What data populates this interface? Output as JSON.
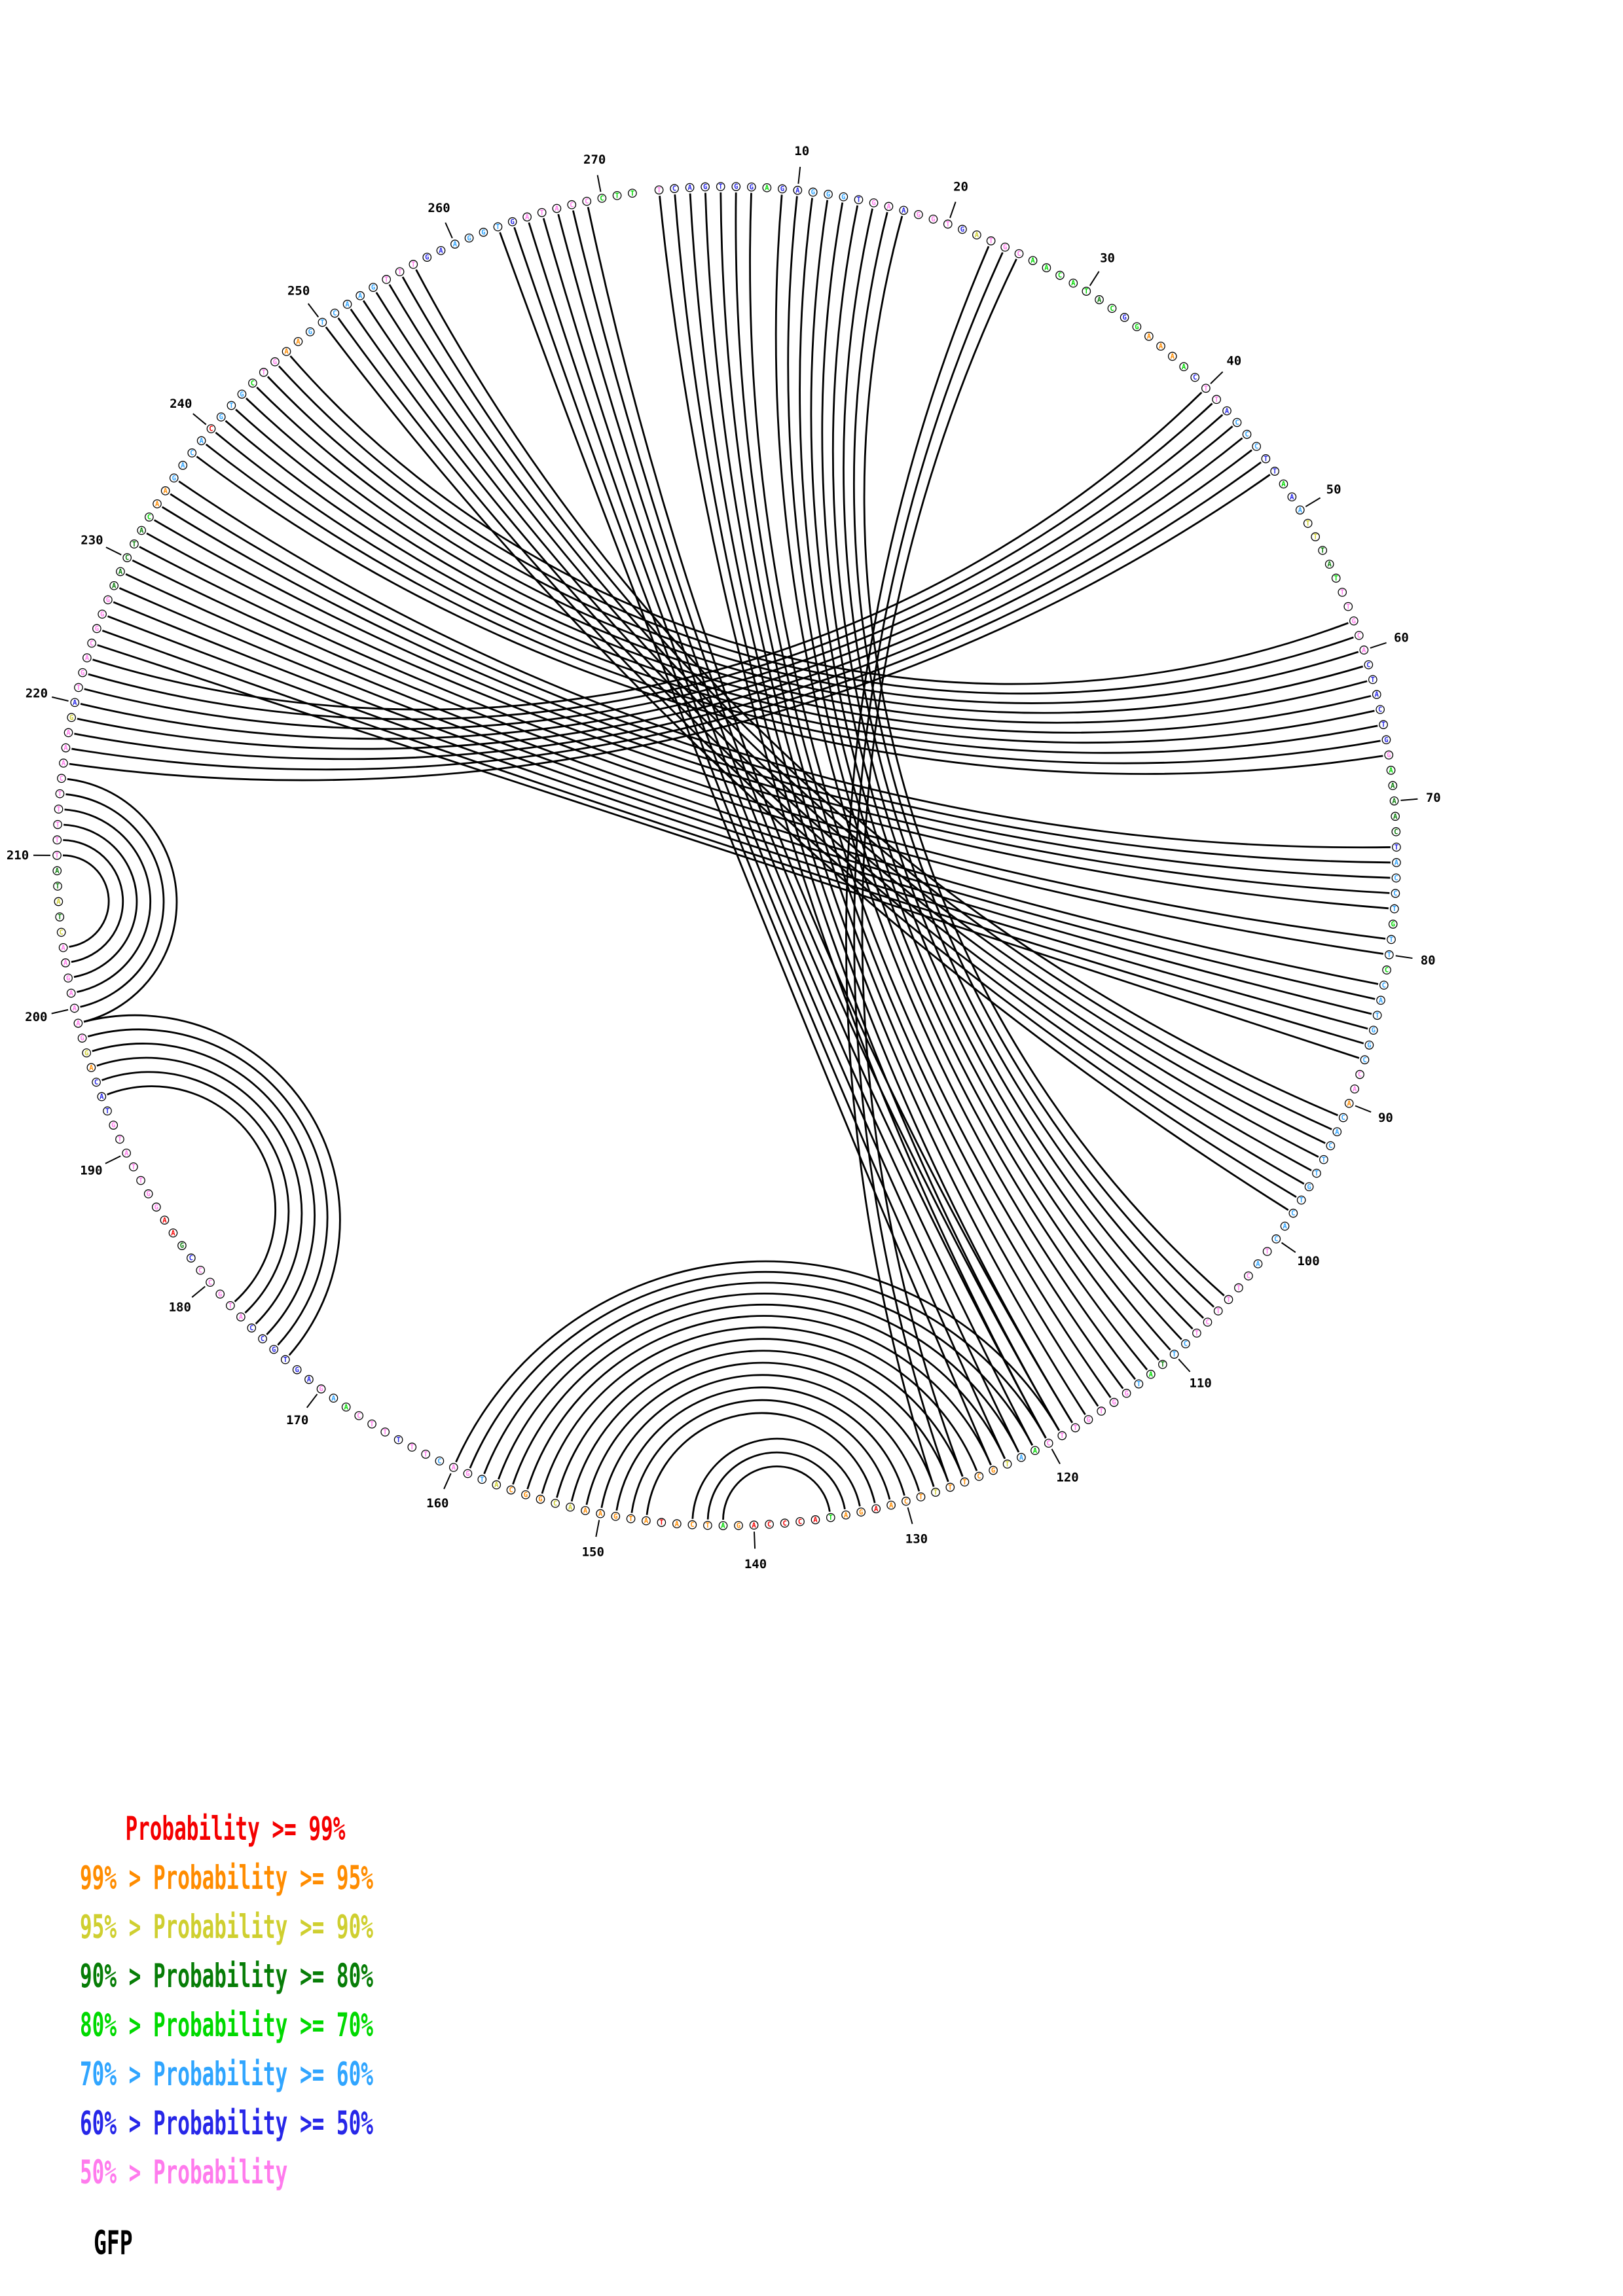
{
  "title": "GFP",
  "legend": {
    "rows": [
      {
        "label": "Probability >= 99%",
        "color": "#f40000",
        "indent": true
      },
      {
        "label": "99% > Probability >= 95%",
        "color": "#ff8c00",
        "indent": false
      },
      {
        "label": "95% > Probability >= 90%",
        "color": "#cfcf30",
        "indent": false
      },
      {
        "label": "90% > Probability >= 80%",
        "color": "#077d07",
        "indent": false
      },
      {
        "label": "80% > Probability >= 70%",
        "color": "#00d900",
        "indent": false
      },
      {
        "label": "70% > Probability >= 60%",
        "color": "#30a5ff",
        "indent": false
      },
      {
        "label": "60% > Probability >= 50%",
        "color": "#2727e8",
        "indent": false
      },
      {
        "label": "50% > Probability",
        "color": "#ff7bed",
        "indent": false
      }
    ]
  },
  "chart_data": {
    "type": "circular-arc-diagram",
    "title": "GFP",
    "sequence": "TCAGTGGAGAGGGTGAAGGTGATGCAACATACGGAAAACTTACCCTTAAATTTATTTGCACTACTGGAAAACTACCTGTTCCATGGCCAACACTTGTCACTACTTTCTCTTATGGTGTTCAATGCTTTTCAAGATACCCAGATCATATGAAACGGCATGACTTTTTCAAGAGTGCCATGCCCGAAGGTTATGTACAGGAAAGAACTATATTTTTCAAAGATGACGGGAACTACAAGACACGTGCTGAAGTCAAGTTTGAAGGTGATACCCTT",
    "node_color_classes": "pbbbbbbgbbcccbppbpppbypppgggggGgbgooogbppbcccbbgbcyyGGgpppppbbbbbbpgGGGGbccccgccgccccccppoccccccccccpcppppppccGgcpppppppgcyooooyoooroogrrrrrogoooroooooyyoooycppcppbpppgcpbbbbbbpppppbGrrpppppppbbboypppppppyGyGGpppppppppybpppppppGGGGGgooccccrcccgppooccccccpppbbccccbpppppggg",
    "color_classes": {
      "r": "#f40000",
      "o": "#ff8c00",
      "y": "#cfcf30",
      "G": "#077d07",
      "g": "#00d900",
      "c": "#30a5ff",
      "b": "#2727e8",
      "p": "#ff7bed"
    },
    "class_meaning": {
      "r": "Probability >= 99%",
      "o": "99% > Probability >= 95%",
      "y": "95% > Probability >= 90%",
      "G": "90% > Probability >= 80%",
      "g": "80% > Probability >= 70%",
      "c": "70% > Probability >= 60%",
      "b": "60% > Probability >= 50%",
      "p": "50% > Probability"
    },
    "position_labels": [
      10,
      20,
      30,
      40,
      50,
      60,
      70,
      80,
      90,
      100,
      110,
      120,
      130,
      140,
      150,
      160,
      170,
      180,
      190,
      200,
      210,
      220,
      230,
      240,
      250,
      260,
      270
    ],
    "arcs": [
      [
        1,
        120
      ],
      [
        2,
        119
      ],
      [
        3,
        118
      ],
      [
        4,
        117
      ],
      [
        5,
        116
      ],
      [
        6,
        115
      ],
      [
        7,
        114
      ],
      [
        9,
        113
      ],
      [
        10,
        112
      ],
      [
        11,
        111
      ],
      [
        12,
        110
      ],
      [
        13,
        109
      ],
      [
        14,
        108
      ],
      [
        15,
        107
      ],
      [
        16,
        106
      ],
      [
        17,
        105
      ],
      [
        23,
        128
      ],
      [
        24,
        127
      ],
      [
        25,
        126
      ],
      [
        40,
        223
      ],
      [
        41,
        222
      ],
      [
        42,
        221
      ],
      [
        43,
        220
      ],
      [
        44,
        219
      ],
      [
        45,
        218
      ],
      [
        46,
        217
      ],
      [
        47,
        216
      ],
      [
        58,
        247
      ],
      [
        59,
        246
      ],
      [
        60,
        245
      ],
      [
        61,
        244
      ],
      [
        62,
        243
      ],
      [
        63,
        242
      ],
      [
        64,
        241
      ],
      [
        65,
        240
      ],
      [
        66,
        239
      ],
      [
        67,
        238
      ],
      [
        73,
        236
      ],
      [
        74,
        235
      ],
      [
        75,
        234
      ],
      [
        76,
        233
      ],
      [
        77,
        232
      ],
      [
        79,
        231
      ],
      [
        80,
        230
      ],
      [
        82,
        229
      ],
      [
        83,
        228
      ],
      [
        84,
        227
      ],
      [
        85,
        226
      ],
      [
        86,
        225
      ],
      [
        87,
        224
      ],
      [
        91,
        257
      ],
      [
        92,
        256
      ],
      [
        93,
        255
      ],
      [
        94,
        254
      ],
      [
        95,
        253
      ],
      [
        96,
        252
      ],
      [
        97,
        251
      ],
      [
        98,
        250
      ],
      [
        118,
        269
      ],
      [
        119,
        268
      ],
      [
        120,
        267
      ],
      [
        121,
        266
      ],
      [
        122,
        265
      ],
      [
        123,
        264
      ],
      [
        124,
        263
      ],
      [
        119,
        160
      ],
      [
        120,
        159
      ],
      [
        121,
        158
      ],
      [
        122,
        157
      ],
      [
        123,
        156
      ],
      [
        124,
        155
      ],
      [
        125,
        154
      ],
      [
        126,
        153
      ],
      [
        127,
        152
      ],
      [
        128,
        151
      ],
      [
        129,
        150
      ],
      [
        130,
        149
      ],
      [
        131,
        148
      ],
      [
        132,
        147
      ],
      [
        133,
        144
      ],
      [
        134,
        143
      ],
      [
        135,
        142
      ],
      [
        173,
        199
      ],
      [
        174,
        198
      ],
      [
        175,
        197
      ],
      [
        176,
        196
      ],
      [
        177,
        195
      ],
      [
        178,
        194
      ],
      [
        199,
        215
      ],
      [
        200,
        214
      ],
      [
        201,
        213
      ],
      [
        202,
        212
      ],
      [
        203,
        211
      ],
      [
        204,
        210
      ]
    ]
  }
}
